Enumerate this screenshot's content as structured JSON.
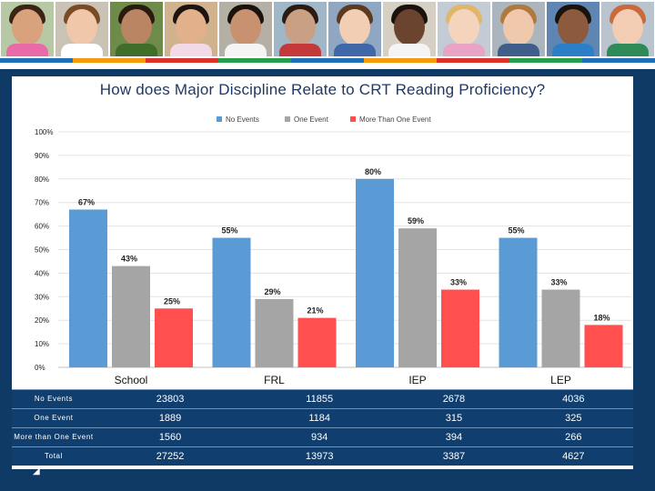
{
  "chart_data": {
    "type": "bar",
    "title": "How does Major Discipline Relate to CRT Reading Proficiency?",
    "xlabel": "",
    "ylabel": "",
    "ylim": [
      0,
      100
    ],
    "yticks": [
      0,
      10,
      20,
      30,
      40,
      50,
      60,
      70,
      80,
      90,
      100
    ],
    "grid": true,
    "legend_position": "top",
    "categories": [
      "School",
      "FRL",
      "IEP",
      "LEP"
    ],
    "series": [
      {
        "name": "No Events",
        "color": "#5b9bd5",
        "values": [
          67,
          55,
          80,
          55
        ],
        "labels": [
          "67%",
          "55%",
          "80%",
          "55%"
        ]
      },
      {
        "name": "One Event",
        "color": "#a5a5a5",
        "values": [
          43,
          29,
          59,
          33
        ],
        "labels": [
          "43%",
          "29%",
          "59%",
          "33%"
        ]
      },
      {
        "name": "More Than One Event",
        "color": "#ff4f4f",
        "values": [
          25,
          21,
          33,
          18
        ],
        "labels": [
          "25%",
          "21%",
          "33%",
          "18%"
        ]
      }
    ]
  },
  "table": {
    "rows": [
      {
        "label": "No Events",
        "values": [
          "23803",
          "11855",
          "2678",
          "4036"
        ]
      },
      {
        "label": "One Event",
        "values": [
          "1889",
          "1184",
          "315",
          "325"
        ]
      },
      {
        "label": "More than One Event",
        "values": [
          "1560",
          "934",
          "394",
          "266"
        ]
      },
      {
        "label": "Total",
        "values": [
          "27252",
          "13973",
          "3387",
          "4627"
        ]
      }
    ]
  },
  "banner": {
    "strip_colors": [
      "#1f6fb8",
      "#f39c12",
      "#d9342b",
      "#2a9d4b",
      "#1f6fb8",
      "#f39c12",
      "#d9342b",
      "#2a9d4b",
      "#1f6fb8"
    ],
    "photos": [
      {
        "skin": "#d9a27d",
        "hair": "#3b2416",
        "bg": "#b7c9a4",
        "shirt": "#e86aa6"
      },
      {
        "skin": "#f0c7a8",
        "hair": "#7a4a24",
        "bg": "#c9c2b5",
        "shirt": "#ffffff"
      },
      {
        "skin": "#b98563",
        "hair": "#2a1a10",
        "bg": "#6e8b4a",
        "shirt": "#3f6e2a"
      },
      {
        "skin": "#e2b08b",
        "hair": "#1c1410",
        "bg": "#d0b28f",
        "shirt": "#f2d9e6"
      },
      {
        "skin": "#c89270",
        "hair": "#1a120d",
        "bg": "#b5b0a6",
        "shirt": "#f4f4f4"
      },
      {
        "skin": "#caa085",
        "hair": "#2b1b12",
        "bg": "#9fb7c7",
        "shirt": "#c43a3a"
      },
      {
        "skin": "#f2cfb4",
        "hair": "#5c3b20",
        "bg": "#8fa7c2",
        "shirt": "#4068a8"
      },
      {
        "skin": "#6b4430",
        "hair": "#1a120d",
        "bg": "#d6cfc4",
        "shirt": "#f4f4f4"
      },
      {
        "skin": "#f5d4bd",
        "hair": "#e0b66a",
        "bg": "#c3cbd4",
        "shirt": "#e9a3c4"
      },
      {
        "skin": "#f0c9ad",
        "hair": "#b07a3f",
        "bg": "#aab5bd",
        "shirt": "#3f5f8a"
      },
      {
        "skin": "#8c5a3c",
        "hair": "#1a120d",
        "bg": "#5f86b3",
        "shirt": "#2c7fc6"
      },
      {
        "skin": "#f3cdb3",
        "hair": "#c96a3a",
        "bg": "#b9c4ce",
        "shirt": "#2e8b57"
      }
    ]
  }
}
